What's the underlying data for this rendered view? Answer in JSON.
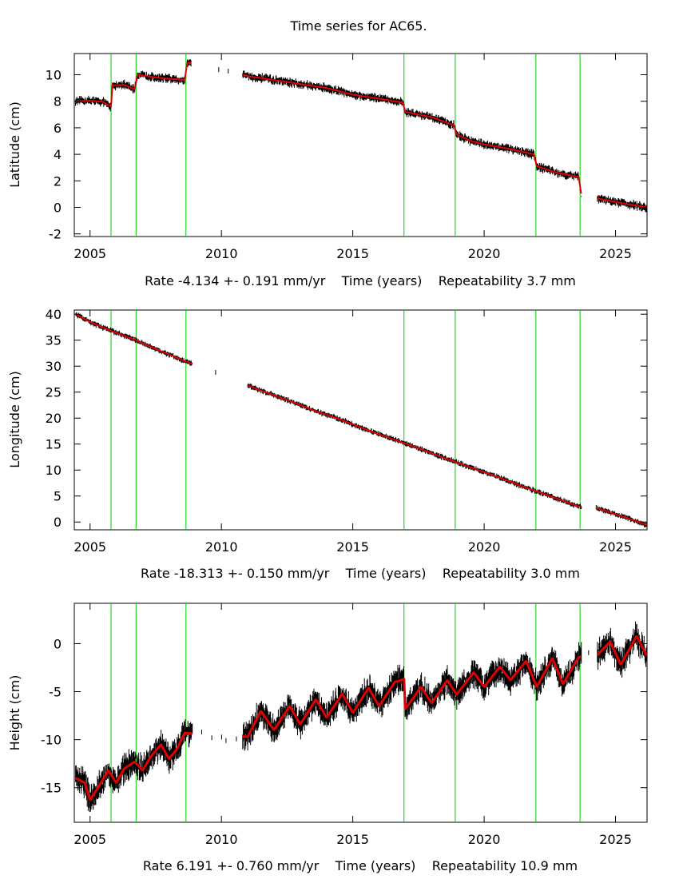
{
  "title": "Time series for AC65.",
  "colors": {
    "data": "#000000",
    "model": "#e00000",
    "events": "#00cc00",
    "frame": "#000000"
  },
  "chart_data": [
    {
      "type": "scatter",
      "ylabel": "Latitude (cm)",
      "xlabel": "Rate -4.134 +- 0.191 mm/yr    Time (years)    Repeatability 3.7 mm",
      "xlim": [
        2004.4,
        2026.2
      ],
      "ylim": [
        -2.2,
        11.6
      ],
      "xticks": [
        2005,
        2010,
        2015,
        2020,
        2025
      ],
      "yticks": [
        -2,
        0,
        2,
        4,
        6,
        8,
        10
      ],
      "events": [
        2005.8,
        2006.75,
        2008.65,
        2016.95,
        2018.9,
        2021.97,
        2023.65
      ],
      "model_label": "",
      "model": [
        [
          2004.45,
          8.0
        ],
        [
          2005.0,
          8.05
        ],
        [
          2005.5,
          7.95
        ],
        [
          2005.8,
          7.6
        ],
        [
          2005.85,
          9.2
        ],
        [
          2006.3,
          9.25
        ],
        [
          2006.7,
          8.9
        ],
        [
          2006.8,
          10.0
        ],
        [
          2007.5,
          9.8
        ],
        [
          2008.0,
          9.7
        ],
        [
          2008.6,
          9.6
        ],
        [
          2008.7,
          10.9
        ],
        [
          2008.9,
          10.9
        ],
        [
          2009.3,
          10.5
        ],
        [
          2009.8,
          10.4
        ],
        [
          2010.3,
          10.3
        ],
        [
          2011.0,
          9.9
        ],
        [
          2012.0,
          9.6
        ],
        [
          2013.0,
          9.3
        ],
        [
          2014.0,
          9.0
        ],
        [
          2015.0,
          8.5
        ],
        [
          2016.0,
          8.2
        ],
        [
          2016.9,
          7.9
        ],
        [
          2017.0,
          7.2
        ],
        [
          2018.0,
          6.8
        ],
        [
          2018.85,
          6.2
        ],
        [
          2018.95,
          5.5
        ],
        [
          2019.5,
          5.0
        ],
        [
          2020.0,
          4.75
        ],
        [
          2021.0,
          4.4
        ],
        [
          2021.9,
          4.0
        ],
        [
          2022.0,
          3.1
        ],
        [
          2022.8,
          2.6
        ],
        [
          2023.6,
          2.3
        ],
        [
          2023.7,
          0.9
        ],
        [
          2024.5,
          0.6
        ],
        [
          2025.3,
          0.3
        ],
        [
          2026.2,
          0.0
        ]
      ],
      "gaps": [
        [
          2008.85,
          2010.8
        ],
        [
          2023.7,
          2024.3
        ]
      ],
      "noise": 0.25
    },
    {
      "type": "scatter",
      "ylabel": "Longitude (cm)",
      "xlabel": "Rate -18.313 +- 0.150 mm/yr    Time (years)    Repeatability 3.0 mm",
      "xlim": [
        2004.4,
        2026.2
      ],
      "ylim": [
        -1.5,
        40.8
      ],
      "xticks": [
        2005,
        2010,
        2015,
        2020,
        2025
      ],
      "yticks": [
        0,
        5,
        10,
        15,
        20,
        25,
        30,
        35,
        40
      ],
      "events": [
        2005.8,
        2006.75,
        2008.65,
        2016.95,
        2018.9,
        2021.97,
        2023.65
      ],
      "model_label": "",
      "model": [
        [
          2004.45,
          40.0
        ],
        [
          2005.0,
          38.5
        ],
        [
          2005.8,
          36.8
        ],
        [
          2006.75,
          35.0
        ],
        [
          2007.5,
          33.3
        ],
        [
          2008.6,
          31.0
        ],
        [
          2009.5,
          29.3
        ],
        [
          2010.5,
          27.3
        ],
        [
          2011.5,
          25.3
        ],
        [
          2012.5,
          23.5
        ],
        [
          2013.5,
          21.5
        ],
        [
          2014.5,
          19.8
        ],
        [
          2015.5,
          17.8
        ],
        [
          2016.5,
          16.0
        ],
        [
          2017.5,
          14.2
        ],
        [
          2018.5,
          12.3
        ],
        [
          2019.5,
          10.5
        ],
        [
          2020.5,
          8.7
        ],
        [
          2021.5,
          6.8
        ],
        [
          2022.5,
          5.0
        ],
        [
          2023.6,
          3.0
        ],
        [
          2024.3,
          2.7
        ],
        [
          2025.3,
          1.0
        ],
        [
          2026.2,
          -0.6
        ]
      ],
      "gaps": [
        [
          2008.9,
          2011.0
        ],
        [
          2023.7,
          2024.3
        ]
      ],
      "noise": 0.4
    },
    {
      "type": "scatter",
      "ylabel": "Height (cm)",
      "xlabel": "Rate 6.191 +- 0.760 mm/yr    Time (years)    Repeatability 10.9 mm",
      "xlim": [
        2004.4,
        2026.2
      ],
      "ylim": [
        -18.6,
        4.2
      ],
      "xticks": [
        2005,
        2010,
        2015,
        2020,
        2025
      ],
      "yticks": [
        -15,
        -10,
        -5,
        0
      ],
      "events": [
        2005.8,
        2006.75,
        2008.65,
        2016.95,
        2018.9,
        2021.97,
        2023.65
      ],
      "model_label": "",
      "model": [
        [
          2004.45,
          -14.0
        ],
        [
          2004.8,
          -14.5
        ],
        [
          2005.0,
          -16.3
        ],
        [
          2005.3,
          -15.0
        ],
        [
          2005.7,
          -13.2
        ],
        [
          2006.0,
          -14.5
        ],
        [
          2006.3,
          -13.0
        ],
        [
          2006.7,
          -12.3
        ],
        [
          2007.0,
          -13.2
        ],
        [
          2007.3,
          -11.8
        ],
        [
          2007.7,
          -10.5
        ],
        [
          2008.0,
          -12.0
        ],
        [
          2008.3,
          -11.0
        ],
        [
          2008.6,
          -9.3
        ],
        [
          2011.0,
          -9.7
        ],
        [
          2011.5,
          -7.0
        ],
        [
          2012.0,
          -9.0
        ],
        [
          2012.6,
          -6.5
        ],
        [
          2013.0,
          -8.4
        ],
        [
          2013.6,
          -5.8
        ],
        [
          2014.0,
          -7.7
        ],
        [
          2014.6,
          -5.2
        ],
        [
          2015.0,
          -7.2
        ],
        [
          2015.6,
          -4.6
        ],
        [
          2016.0,
          -6.5
        ],
        [
          2016.6,
          -4.0
        ],
        [
          2016.95,
          -3.7
        ],
        [
          2017.0,
          -6.8
        ],
        [
          2017.6,
          -4.5
        ],
        [
          2018.0,
          -6.2
        ],
        [
          2018.6,
          -3.8
        ],
        [
          2018.95,
          -5.3
        ],
        [
          2019.6,
          -3.0
        ],
        [
          2020.0,
          -4.5
        ],
        [
          2020.6,
          -2.4
        ],
        [
          2021.0,
          -3.8
        ],
        [
          2021.6,
          -1.8
        ],
        [
          2022.0,
          -4.5
        ],
        [
          2022.6,
          -1.5
        ],
        [
          2023.0,
          -4.2
        ],
        [
          2023.6,
          -1.4
        ],
        [
          2024.3,
          -1.2
        ],
        [
          2024.8,
          0.2
        ],
        [
          2025.2,
          -2.2
        ],
        [
          2025.8,
          0.8
        ],
        [
          2026.2,
          -1.3
        ]
      ],
      "gaps": [
        [
          2008.9,
          2010.8
        ],
        [
          2023.7,
          2024.3
        ]
      ],
      "noise": 1.1
    }
  ]
}
